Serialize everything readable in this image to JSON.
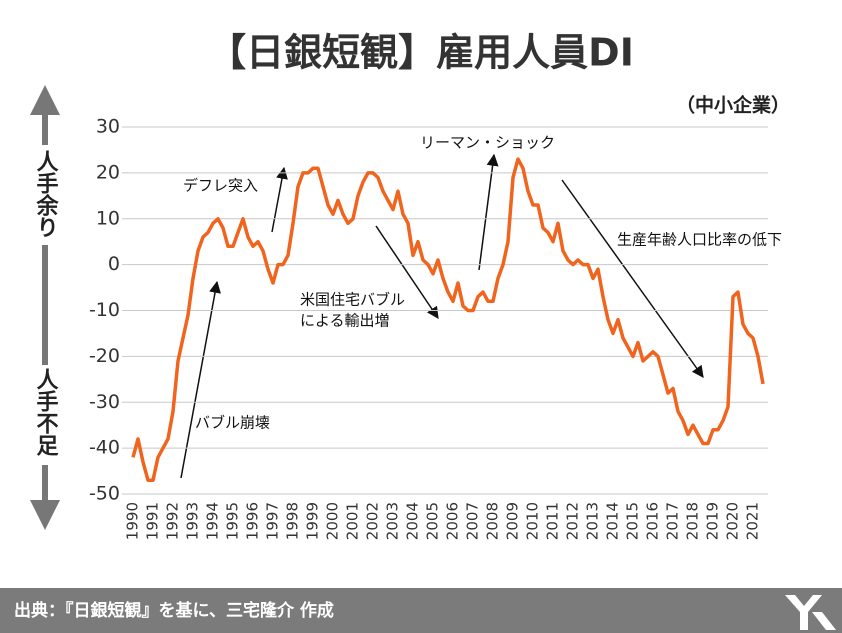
{
  "chart_data": {
    "type": "line",
    "title": "【日銀短観】雇用人員DI",
    "subtitle": "（中小企業）",
    "side_labels": [
      "人手余り",
      "人手不足"
    ],
    "annotations": [
      {
        "lines": [
          "バブル崩壊"
        ]
      },
      {
        "lines": [
          "デフレ突入"
        ]
      },
      {
        "lines": [
          "米国住宅バブル",
          "による輸出増"
        ]
      },
      {
        "lines": [
          "リーマン・ショック"
        ]
      },
      {
        "lines": [
          "生産年齢人口比率の低下"
        ]
      }
    ],
    "source": "出典：『日銀短観』を基に、三宅隆介 作成",
    "color": "#f0641e",
    "x": [
      1990,
      1990.25,
      1990.5,
      1990.75,
      1991,
      1991.25,
      1991.5,
      1991.75,
      1992,
      1992.25,
      1992.5,
      1992.75,
      1993,
      1993.25,
      1993.5,
      1993.75,
      1994,
      1994.25,
      1994.5,
      1994.75,
      1995,
      1995.25,
      1995.5,
      1995.75,
      1996,
      1996.25,
      1996.5,
      1996.75,
      1997,
      1997.25,
      1997.5,
      1997.75,
      1998,
      1998.25,
      1998.5,
      1998.75,
      1999,
      1999.25,
      1999.5,
      1999.75,
      2000,
      2000.25,
      2000.5,
      2000.75,
      2001,
      2001.25,
      2001.5,
      2001.75,
      2002,
      2002.25,
      2002.5,
      2002.75,
      2003,
      2003.25,
      2003.5,
      2003.75,
      2004,
      2004.25,
      2004.5,
      2004.75,
      2005,
      2005.25,
      2005.5,
      2005.75,
      2006,
      2006.25,
      2006.5,
      2006.75,
      2007,
      2007.25,
      2007.5,
      2007.75,
      2008,
      2008.25,
      2008.5,
      2008.75,
      2009,
      2009.25,
      2009.5,
      2009.75,
      2010,
      2010.25,
      2010.5,
      2010.75,
      2011,
      2011.25,
      2011.5,
      2011.75,
      2012,
      2012.25,
      2012.5,
      2012.75,
      2013,
      2013.25,
      2013.5,
      2013.75,
      2014,
      2014.25,
      2014.5,
      2014.75,
      2015,
      2015.25,
      2015.5,
      2015.75,
      2016,
      2016.25,
      2016.5,
      2016.75,
      2017,
      2017.25,
      2017.5,
      2017.75,
      2018,
      2018.25,
      2018.5,
      2018.75,
      2019,
      2019.25,
      2019.5,
      2019.75,
      2020,
      2020.25,
      2020.5,
      2020.75,
      2021,
      2021.25,
      2021.5
    ],
    "values": [
      -42,
      -38,
      -43,
      -47,
      -47,
      -42,
      -40,
      -38,
      -32,
      -21,
      -16,
      -11,
      -3,
      3,
      6,
      7,
      9,
      10,
      8,
      4,
      4,
      7,
      10,
      6,
      4,
      5,
      3,
      -1,
      -4,
      0,
      0,
      2,
      9,
      17,
      20,
      20,
      21,
      21,
      17,
      13,
      11,
      14,
      11,
      9,
      10,
      15,
      18,
      20,
      20,
      19,
      16,
      14,
      12,
      16,
      11,
      9,
      2,
      5,
      1,
      0,
      -2,
      1,
      -3,
      -6,
      -8,
      -4,
      -9,
      -10,
      -10,
      -7,
      -6,
      -8,
      -8,
      -3,
      0,
      5,
      19,
      23,
      21,
      16,
      13,
      13,
      8,
      7,
      5,
      9,
      3,
      1,
      0,
      1,
      0,
      0,
      -3,
      -1,
      -7,
      -12,
      -15,
      -12,
      -16,
      -18,
      -20,
      -17,
      -21,
      -20,
      -19,
      -20,
      -24,
      -28,
      -27,
      -32,
      -34,
      -37,
      -35,
      -37,
      -39,
      -39,
      -36,
      -36,
      -34,
      -31,
      -7,
      -6,
      -13,
      -15,
      -16,
      -20,
      -26
    ],
    "xlim": [
      1990,
      2021.5
    ],
    "xticks": [
      1990,
      1991,
      1992,
      1993,
      1994,
      1995,
      1996,
      1997,
      1998,
      1999,
      2000,
      2001,
      2002,
      2003,
      2004,
      2005,
      2006,
      2007,
      2008,
      2009,
      2010,
      2011,
      2012,
      2013,
      2014,
      2015,
      2016,
      2017,
      2018,
      2019,
      2020,
      2021
    ],
    "ylim": [
      -50,
      30
    ],
    "yticks": [
      30,
      20,
      10,
      0,
      -10,
      -20,
      -30,
      -40,
      -50
    ],
    "grid": true
  }
}
